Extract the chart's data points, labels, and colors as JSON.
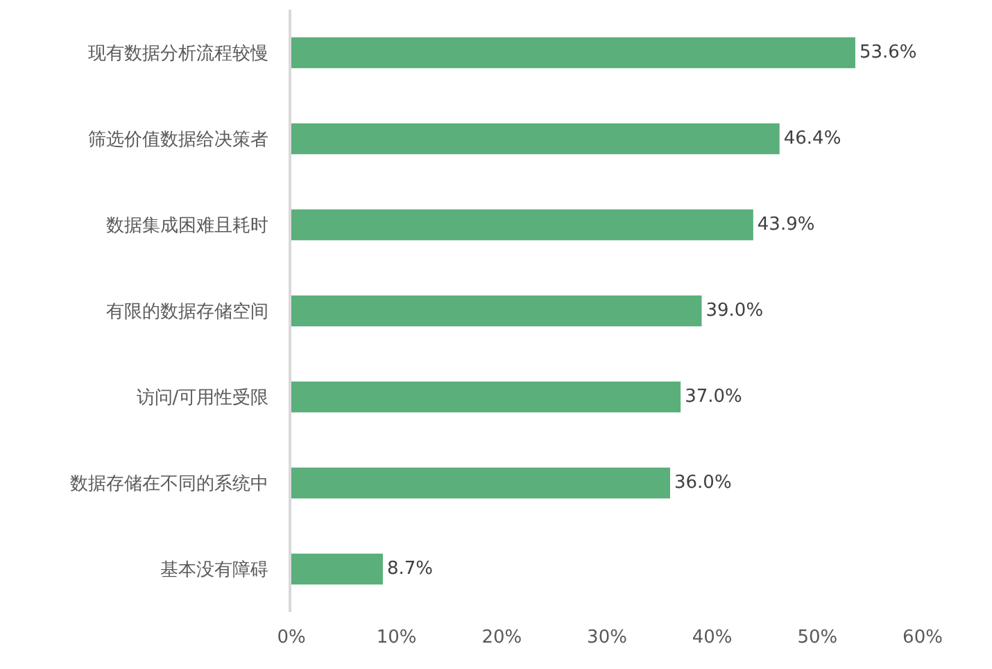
{
  "chart_data": {
    "type": "bar",
    "orientation": "horizontal",
    "categories": [
      "现有数据分析流程较慢",
      "筛选价值数据给决策者",
      "数据集成困难且耗时",
      "有限的数据存储空间",
      "访问/可用性受限",
      "数据存储在不同的系统中",
      "基本没有障碍"
    ],
    "values": [
      53.6,
      46.4,
      43.9,
      39.0,
      37.0,
      36.0,
      8.7
    ],
    "value_labels": [
      "53.6%",
      "46.4%",
      "43.9%",
      "39.0%",
      "37.0%",
      "36.0%",
      "8.7%"
    ],
    "color": "#5aaf7a",
    "xlim": [
      0,
      60
    ],
    "xticks": [
      {
        "value": 0,
        "label": "0%"
      },
      {
        "value": 10,
        "label": "10%"
      },
      {
        "value": 20,
        "label": "20%"
      },
      {
        "value": 30,
        "label": "30%"
      },
      {
        "value": 40,
        "label": "40%"
      },
      {
        "value": 50,
        "label": "50%"
      },
      {
        "value": 60,
        "label": "60%"
      }
    ]
  }
}
